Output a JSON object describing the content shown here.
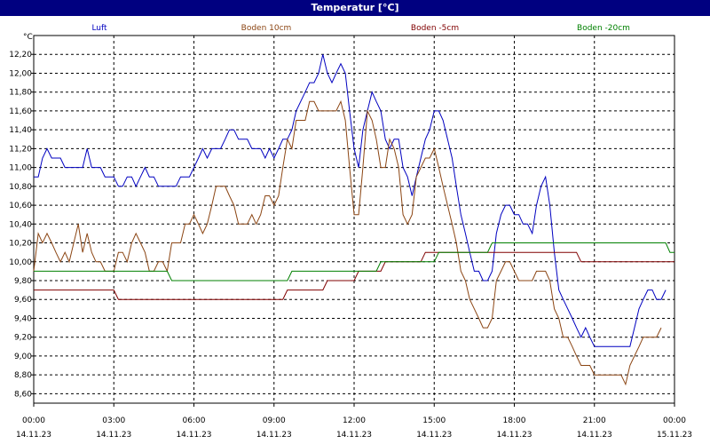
{
  "window": {
    "title": "Temperatur [°C]"
  },
  "chart_data": {
    "type": "line",
    "title": "Temperatur [°C]",
    "ylabel": "°C",
    "ylim": [
      8.6,
      12.2
    ],
    "y_ticks": [
      "12,20",
      "12,00",
      "11,80",
      "11,60",
      "11,40",
      "11,20",
      "11,00",
      "10,80",
      "10,60",
      "10,40",
      "10,20",
      "10,00",
      "9,80",
      "9,60",
      "9,40",
      "9,20",
      "9,00",
      "8,80",
      "8,60"
    ],
    "x_ticks": [
      {
        "time": "00:00",
        "date": "14.11.23"
      },
      {
        "time": "03:00",
        "date": "14.11.23"
      },
      {
        "time": "06:00",
        "date": "14.11.23"
      },
      {
        "time": "09:00",
        "date": "14.11.23"
      },
      {
        "time": "12:00",
        "date": "14.11.23"
      },
      {
        "time": "15:00",
        "date": "14.11.23"
      },
      {
        "time": "18:00",
        "date": "14.11.23"
      },
      {
        "time": "21:00",
        "date": "14.11.23"
      },
      {
        "time": "00:00",
        "date": "15.11.23"
      }
    ],
    "xlim_hours": [
      0,
      24
    ],
    "grid": true,
    "legend_position": "top",
    "series": [
      {
        "name": "Luft",
        "color": "#0000c0",
        "points": [
          [
            0,
            10.9
          ],
          [
            0.17,
            10.9
          ],
          [
            0.33,
            11.1
          ],
          [
            0.5,
            11.2
          ],
          [
            0.67,
            11.1
          ],
          [
            1,
            11.1
          ],
          [
            1.17,
            11.0
          ],
          [
            1.83,
            11.0
          ],
          [
            2,
            11.2
          ],
          [
            2.17,
            11.0
          ],
          [
            2.5,
            11.0
          ],
          [
            2.67,
            10.9
          ],
          [
            3,
            10.9
          ],
          [
            3.17,
            10.8
          ],
          [
            3.33,
            10.8
          ],
          [
            3.5,
            10.9
          ],
          [
            3.67,
            10.9
          ],
          [
            3.83,
            10.8
          ],
          [
            4,
            10.9
          ],
          [
            4.17,
            11.0
          ],
          [
            4.33,
            10.9
          ],
          [
            4.5,
            10.9
          ],
          [
            4.67,
            10.8
          ],
          [
            5.33,
            10.8
          ],
          [
            5.5,
            10.9
          ],
          [
            5.83,
            10.9
          ],
          [
            6,
            11.0
          ],
          [
            6.17,
            11.1
          ],
          [
            6.33,
            11.2
          ],
          [
            6.5,
            11.1
          ],
          [
            6.67,
            11.2
          ],
          [
            7,
            11.2
          ],
          [
            7.17,
            11.3
          ],
          [
            7.33,
            11.4
          ],
          [
            7.5,
            11.4
          ],
          [
            7.67,
            11.3
          ],
          [
            8,
            11.3
          ],
          [
            8.17,
            11.2
          ],
          [
            8.5,
            11.2
          ],
          [
            8.67,
            11.1
          ],
          [
            8.83,
            11.2
          ],
          [
            9,
            11.1
          ],
          [
            9.17,
            11.2
          ],
          [
            9.33,
            11.3
          ],
          [
            9.5,
            11.3
          ],
          [
            9.67,
            11.4
          ],
          [
            9.83,
            11.6
          ],
          [
            10,
            11.7
          ],
          [
            10.17,
            11.8
          ],
          [
            10.33,
            11.9
          ],
          [
            10.5,
            11.9
          ],
          [
            10.67,
            12.0
          ],
          [
            10.83,
            12.2
          ],
          [
            11,
            12.0
          ],
          [
            11.17,
            11.9
          ],
          [
            11.33,
            12.0
          ],
          [
            11.5,
            12.1
          ],
          [
            11.67,
            12.0
          ],
          [
            11.83,
            11.6
          ],
          [
            12,
            11.2
          ],
          [
            12.17,
            11.0
          ],
          [
            12.33,
            11.4
          ],
          [
            12.5,
            11.6
          ],
          [
            12.67,
            11.8
          ],
          [
            12.83,
            11.7
          ],
          [
            13,
            11.6
          ],
          [
            13.17,
            11.3
          ],
          [
            13.33,
            11.2
          ],
          [
            13.5,
            11.3
          ],
          [
            13.67,
            11.3
          ],
          [
            13.83,
            11.0
          ],
          [
            14,
            10.9
          ],
          [
            14.17,
            10.7
          ],
          [
            14.33,
            10.9
          ],
          [
            14.5,
            11.1
          ],
          [
            14.67,
            11.3
          ],
          [
            14.83,
            11.4
          ],
          [
            15,
            11.6
          ],
          [
            15.17,
            11.6
          ],
          [
            15.33,
            11.5
          ],
          [
            15.5,
            11.3
          ],
          [
            15.67,
            11.1
          ],
          [
            15.83,
            10.8
          ],
          [
            16,
            10.5
          ],
          [
            16.17,
            10.3
          ],
          [
            16.33,
            10.1
          ],
          [
            16.5,
            9.9
          ],
          [
            16.67,
            9.9
          ],
          [
            16.83,
            9.8
          ],
          [
            17,
            9.8
          ],
          [
            17.17,
            9.9
          ],
          [
            17.33,
            10.3
          ],
          [
            17.5,
            10.5
          ],
          [
            17.67,
            10.6
          ],
          [
            17.83,
            10.6
          ],
          [
            18,
            10.5
          ],
          [
            18.17,
            10.5
          ],
          [
            18.33,
            10.4
          ],
          [
            18.5,
            10.4
          ],
          [
            18.67,
            10.3
          ],
          [
            18.83,
            10.6
          ],
          [
            19,
            10.8
          ],
          [
            19.17,
            10.9
          ],
          [
            19.33,
            10.6
          ],
          [
            19.5,
            10.1
          ],
          [
            19.67,
            9.7
          ],
          [
            19.83,
            9.6
          ],
          [
            20,
            9.5
          ],
          [
            20.17,
            9.4
          ],
          [
            20.33,
            9.3
          ],
          [
            20.5,
            9.2
          ],
          [
            20.67,
            9.3
          ],
          [
            20.83,
            9.2
          ],
          [
            21,
            9.1
          ],
          [
            22.33,
            9.1
          ],
          [
            22.5,
            9.3
          ],
          [
            22.67,
            9.5
          ],
          [
            22.83,
            9.6
          ],
          [
            23,
            9.7
          ],
          [
            23.17,
            9.7
          ],
          [
            23.33,
            9.6
          ],
          [
            23.5,
            9.6
          ],
          [
            23.67,
            9.7
          ]
        ]
      },
      {
        "name": "Boden 10cm",
        "color": "#8b4513",
        "points": [
          [
            0,
            9.9
          ],
          [
            0.17,
            10.3
          ],
          [
            0.33,
            10.2
          ],
          [
            0.5,
            10.3
          ],
          [
            0.67,
            10.2
          ],
          [
            0.83,
            10.1
          ],
          [
            1,
            10.0
          ],
          [
            1.17,
            10.1
          ],
          [
            1.33,
            10.0
          ],
          [
            1.5,
            10.2
          ],
          [
            1.67,
            10.4
          ],
          [
            1.83,
            10.1
          ],
          [
            2,
            10.3
          ],
          [
            2.17,
            10.1
          ],
          [
            2.33,
            10.0
          ],
          [
            2.5,
            10.0
          ],
          [
            2.67,
            9.9
          ],
          [
            3,
            9.9
          ],
          [
            3.17,
            10.1
          ],
          [
            3.33,
            10.1
          ],
          [
            3.5,
            10.0
          ],
          [
            3.67,
            10.2
          ],
          [
            3.83,
            10.3
          ],
          [
            4,
            10.2
          ],
          [
            4.17,
            10.1
          ],
          [
            4.33,
            9.9
          ],
          [
            4.5,
            9.9
          ],
          [
            4.67,
            10.0
          ],
          [
            4.83,
            10.0
          ],
          [
            5,
            9.9
          ],
          [
            5.17,
            10.2
          ],
          [
            5.5,
            10.2
          ],
          [
            5.67,
            10.4
          ],
          [
            5.83,
            10.4
          ],
          [
            6,
            10.5
          ],
          [
            6.17,
            10.4
          ],
          [
            6.33,
            10.3
          ],
          [
            6.5,
            10.4
          ],
          [
            6.67,
            10.6
          ],
          [
            6.83,
            10.8
          ],
          [
            7.17,
            10.8
          ],
          [
            7.33,
            10.7
          ],
          [
            7.5,
            10.6
          ],
          [
            7.67,
            10.4
          ],
          [
            8,
            10.4
          ],
          [
            8.17,
            10.5
          ],
          [
            8.33,
            10.4
          ],
          [
            8.5,
            10.5
          ],
          [
            8.67,
            10.7
          ],
          [
            8.83,
            10.7
          ],
          [
            9,
            10.6
          ],
          [
            9.17,
            10.7
          ],
          [
            9.33,
            11.0
          ],
          [
            9.5,
            11.3
          ],
          [
            9.67,
            11.2
          ],
          [
            9.83,
            11.5
          ],
          [
            10,
            11.5
          ],
          [
            10.17,
            11.5
          ],
          [
            10.33,
            11.7
          ],
          [
            10.5,
            11.7
          ],
          [
            10.67,
            11.6
          ],
          [
            10.83,
            11.6
          ],
          [
            11,
            11.6
          ],
          [
            11.17,
            11.6
          ],
          [
            11.33,
            11.6
          ],
          [
            11.5,
            11.7
          ],
          [
            11.67,
            11.5
          ],
          [
            11.83,
            11.0
          ],
          [
            12,
            10.5
          ],
          [
            12.17,
            10.5
          ],
          [
            12.33,
            11.0
          ],
          [
            12.5,
            11.6
          ],
          [
            12.67,
            11.5
          ],
          [
            12.83,
            11.3
          ],
          [
            13,
            11.0
          ],
          [
            13.17,
            11.0
          ],
          [
            13.33,
            11.3
          ],
          [
            13.5,
            11.2
          ],
          [
            13.67,
            11.0
          ],
          [
            13.83,
            10.5
          ],
          [
            14,
            10.4
          ],
          [
            14.17,
            10.5
          ],
          [
            14.33,
            10.9
          ],
          [
            14.5,
            11.0
          ],
          [
            14.67,
            11.1
          ],
          [
            14.83,
            11.1
          ],
          [
            15,
            11.2
          ],
          [
            15.17,
            11.0
          ],
          [
            15.33,
            10.8
          ],
          [
            15.5,
            10.6
          ],
          [
            15.67,
            10.4
          ],
          [
            15.83,
            10.2
          ],
          [
            16,
            9.9
          ],
          [
            16.17,
            9.8
          ],
          [
            16.33,
            9.6
          ],
          [
            16.5,
            9.5
          ],
          [
            16.67,
            9.4
          ],
          [
            16.83,
            9.3
          ],
          [
            17,
            9.3
          ],
          [
            17.17,
            9.4
          ],
          [
            17.33,
            9.8
          ],
          [
            17.5,
            9.9
          ],
          [
            17.67,
            10.0
          ],
          [
            17.83,
            10.0
          ],
          [
            18,
            9.9
          ],
          [
            18.17,
            9.8
          ],
          [
            18.67,
            9.8
          ],
          [
            18.83,
            9.9
          ],
          [
            19.17,
            9.9
          ],
          [
            19.33,
            9.8
          ],
          [
            19.5,
            9.5
          ],
          [
            19.67,
            9.4
          ],
          [
            19.83,
            9.2
          ],
          [
            20,
            9.2
          ],
          [
            20.17,
            9.1
          ],
          [
            20.33,
            9.0
          ],
          [
            20.5,
            8.9
          ],
          [
            20.83,
            8.9
          ],
          [
            21,
            8.8
          ],
          [
            22,
            8.8
          ],
          [
            22.17,
            8.7
          ],
          [
            22.33,
            8.9
          ],
          [
            22.5,
            9.0
          ],
          [
            22.67,
            9.1
          ],
          [
            22.83,
            9.2
          ],
          [
            23.33,
            9.2
          ],
          [
            23.5,
            9.3
          ]
        ]
      },
      {
        "name": "Boden -5cm",
        "color": "#800000",
        "points": [
          [
            0,
            9.7
          ],
          [
            3,
            9.7
          ],
          [
            3.17,
            9.6
          ],
          [
            9.33,
            9.6
          ],
          [
            9.5,
            9.7
          ],
          [
            10.83,
            9.7
          ],
          [
            11,
            9.8
          ],
          [
            12,
            9.8
          ],
          [
            12.17,
            9.9
          ],
          [
            13,
            9.9
          ],
          [
            13.17,
            10.0
          ],
          [
            14.5,
            10.0
          ],
          [
            14.67,
            10.1
          ],
          [
            20.33,
            10.1
          ],
          [
            20.5,
            10.0
          ],
          [
            24,
            10.0
          ]
        ]
      },
      {
        "name": "Boden -20cm",
        "color": "#008000",
        "points": [
          [
            0,
            9.9
          ],
          [
            5,
            9.9
          ],
          [
            5.17,
            9.8
          ],
          [
            9.5,
            9.8
          ],
          [
            9.67,
            9.9
          ],
          [
            12.83,
            9.9
          ],
          [
            13,
            10.0
          ],
          [
            15,
            10.0
          ],
          [
            15.17,
            10.1
          ],
          [
            17,
            10.1
          ],
          [
            17.17,
            10.2
          ],
          [
            23.67,
            10.2
          ],
          [
            23.83,
            10.1
          ],
          [
            24,
            10.1
          ]
        ]
      }
    ]
  }
}
